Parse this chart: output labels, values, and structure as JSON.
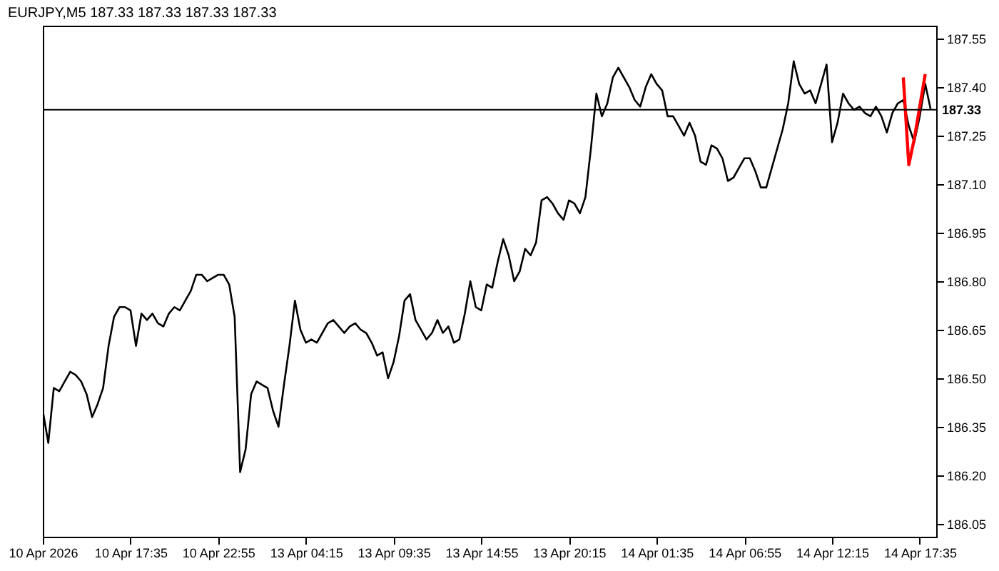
{
  "chart_data": {
    "type": "line",
    "title": "EURJPY,M5  187.33 187.33 187.33 187.33",
    "categories": [
      "10 Apr 2026",
      null,
      null,
      null,
      null,
      null,
      null,
      null,
      null,
      null,
      null,
      null,
      null,
      null,
      null,
      null,
      "10 Apr 17:35",
      null,
      null,
      null,
      null,
      null,
      null,
      null,
      null,
      null,
      null,
      null,
      null,
      null,
      null,
      null,
      "10 Apr 22:55",
      null,
      null,
      null,
      null,
      null,
      null,
      null,
      null,
      null,
      null,
      null,
      null,
      null,
      null,
      null,
      "13 Apr 04:15",
      null,
      null,
      null,
      null,
      null,
      null,
      null,
      null,
      null,
      null,
      null,
      null,
      null,
      null,
      null,
      "13 Apr 09:35",
      null,
      null,
      null,
      null,
      null,
      null,
      null,
      null,
      null,
      null,
      null,
      null,
      null,
      null,
      null,
      "13 Apr 14:55",
      null,
      null,
      null,
      null,
      null,
      null,
      null,
      null,
      null,
      null,
      null,
      null,
      null,
      null,
      null,
      "13 Apr 20:15",
      null,
      null,
      null,
      null,
      null,
      null,
      null,
      null,
      null,
      null,
      null,
      null,
      null,
      null,
      null,
      "14 Apr 01:35",
      null,
      null,
      null,
      null,
      null,
      null,
      null,
      null,
      null,
      null,
      null,
      null,
      null,
      null,
      null,
      "14 Apr 06:55",
      null,
      null,
      null,
      null,
      null,
      null,
      null,
      null,
      null,
      null,
      null,
      null,
      null,
      null,
      null,
      "14 Apr 12:15",
      null,
      null,
      null,
      null,
      null,
      null,
      null,
      null,
      null,
      null,
      null,
      null,
      null,
      null,
      null,
      "14 Apr 17:35",
      null,
      null,
      null
    ],
    "ylim": [
      186.01,
      187.59
    ],
    "yticks": [
      {
        "value": 186.05,
        "label": "186.05"
      },
      {
        "value": 186.2,
        "label": "186.20"
      },
      {
        "value": 186.35,
        "label": "186.35"
      },
      {
        "value": 186.5,
        "label": "186.50"
      },
      {
        "value": 186.65,
        "label": "186.65"
      },
      {
        "value": 186.8,
        "label": "186.80"
      },
      {
        "value": 186.95,
        "label": "186.95"
      },
      {
        "value": 187.1,
        "label": "187.10"
      },
      {
        "value": 187.25,
        "label": "187.25"
      },
      {
        "value": 187.4,
        "label": "187.40"
      },
      {
        "value": 187.55,
        "label": "187.55"
      }
    ],
    "grid": false,
    "ref_lines": [
      {
        "axis": "y",
        "value": 187.33,
        "label": "187.33",
        "color": "#000000"
      }
    ],
    "series": [
      {
        "color": "#000000",
        "values": [
          186.4,
          186.3,
          186.47,
          186.46,
          186.49,
          186.52,
          186.51,
          186.49,
          186.45,
          186.38,
          186.42,
          186.47,
          186.6,
          186.69,
          186.72,
          186.72,
          186.71,
          186.6,
          186.7,
          186.68,
          186.7,
          186.67,
          186.66,
          186.7,
          186.72,
          186.71,
          186.74,
          186.77,
          186.82,
          186.82,
          186.8,
          186.81,
          186.82,
          186.82,
          186.79,
          186.69,
          186.21,
          186.28,
          186.45,
          186.49,
          186.48,
          186.47,
          186.4,
          186.35,
          186.48,
          186.6,
          186.74,
          186.65,
          186.61,
          186.62,
          186.61,
          186.64,
          186.67,
          186.68,
          186.66,
          186.64,
          186.66,
          186.67,
          186.65,
          186.64,
          186.61,
          186.57,
          186.58,
          186.5,
          186.55,
          186.63,
          186.74,
          186.76,
          186.68,
          186.65,
          186.62,
          186.64,
          186.68,
          186.64,
          186.66,
          186.61,
          186.62,
          186.7,
          186.8,
          186.72,
          186.71,
          186.79,
          186.78,
          186.86,
          186.93,
          186.88,
          186.8,
          186.83,
          186.9,
          186.88,
          186.92,
          187.05,
          187.06,
          187.04,
          187.01,
          186.99,
          187.05,
          187.04,
          187.01,
          187.06,
          187.21,
          187.38,
          187.31,
          187.35,
          187.43,
          187.46,
          187.43,
          187.4,
          187.36,
          187.34,
          187.4,
          187.44,
          187.41,
          187.39,
          187.31,
          187.31,
          187.28,
          187.25,
          187.29,
          187.25,
          187.17,
          187.16,
          187.22,
          187.21,
          187.18,
          187.11,
          187.12,
          187.15,
          187.18,
          187.18,
          187.14,
          187.09,
          187.09,
          187.15,
          187.21,
          187.27,
          187.35,
          187.48,
          187.41,
          187.38,
          187.39,
          187.35,
          187.41,
          187.47,
          187.23,
          187.29,
          187.38,
          187.35,
          187.33,
          187.34,
          187.32,
          187.31,
          187.34,
          187.31,
          187.26,
          187.32,
          187.35,
          187.36,
          187.28,
          187.23,
          187.31,
          187.41,
          187.33,
          null
        ]
      },
      {
        "color": "#ff0000",
        "values": [
          null,
          null,
          null,
          null,
          null,
          null,
          null,
          null,
          null,
          null,
          null,
          null,
          null,
          null,
          null,
          null,
          null,
          null,
          null,
          null,
          null,
          null,
          null,
          null,
          null,
          null,
          null,
          null,
          null,
          null,
          null,
          null,
          null,
          null,
          null,
          null,
          null,
          null,
          null,
          null,
          null,
          null,
          null,
          null,
          null,
          null,
          null,
          null,
          null,
          null,
          null,
          null,
          null,
          null,
          null,
          null,
          null,
          null,
          null,
          null,
          null,
          null,
          null,
          null,
          null,
          null,
          null,
          null,
          null,
          null,
          null,
          null,
          null,
          null,
          null,
          null,
          null,
          null,
          null,
          null,
          null,
          null,
          null,
          null,
          null,
          null,
          null,
          null,
          null,
          null,
          null,
          null,
          null,
          null,
          null,
          null,
          null,
          null,
          null,
          null,
          null,
          null,
          null,
          null,
          null,
          null,
          null,
          null,
          null,
          null,
          null,
          null,
          null,
          null,
          null,
          null,
          null,
          null,
          null,
          null,
          null,
          null,
          null,
          null,
          null,
          null,
          null,
          null,
          null,
          null,
          null,
          null,
          null,
          null,
          null,
          null,
          null,
          null,
          null,
          null,
          null,
          null,
          null,
          null,
          null,
          null,
          null,
          null,
          null,
          null,
          null,
          null,
          null,
          null,
          null,
          null,
          null,
          187.43,
          187.16,
          187.24,
          187.34,
          187.44,
          null,
          null
        ]
      }
    ]
  }
}
